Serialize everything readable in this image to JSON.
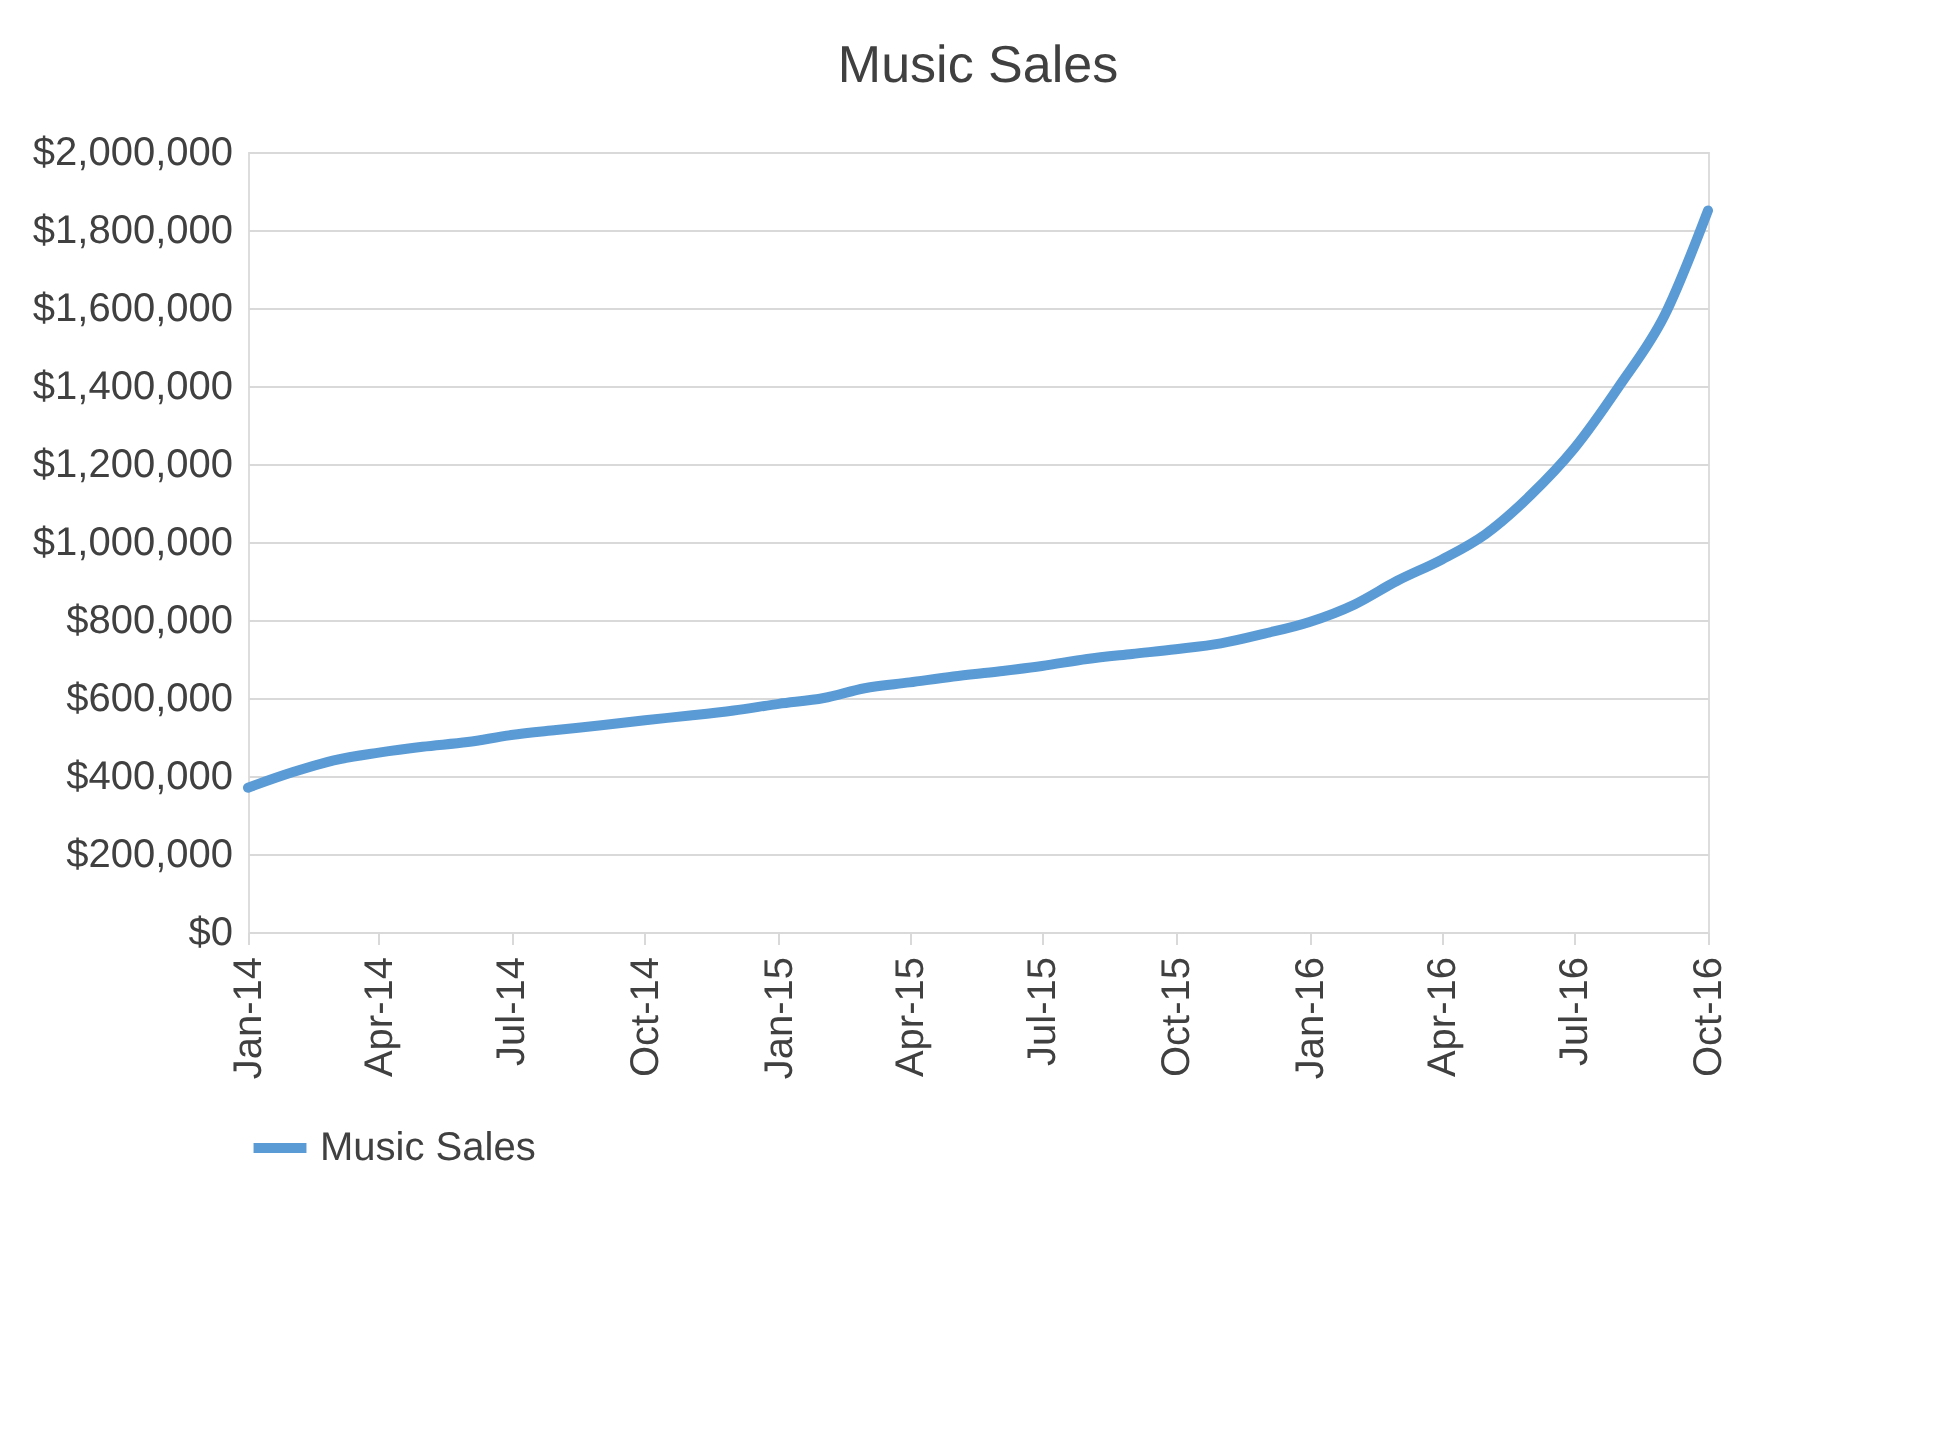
{
  "chart_data": {
    "type": "line",
    "title": "Music Sales",
    "x": [
      "2014-01",
      "2014-02",
      "2014-03",
      "2014-04",
      "2014-05",
      "2014-06",
      "2014-07",
      "2014-08",
      "2014-09",
      "2014-10",
      "2014-11",
      "2014-12",
      "2015-01",
      "2015-02",
      "2015-03",
      "2015-04",
      "2015-05",
      "2015-06",
      "2015-07",
      "2015-08",
      "2015-09",
      "2015-10",
      "2015-11",
      "2015-12",
      "2016-01",
      "2016-02",
      "2016-03",
      "2016-04",
      "2016-05",
      "2016-06",
      "2016-07",
      "2016-08",
      "2016-09",
      "2016-10"
    ],
    "series": [
      {
        "name": "Music Sales",
        "color": "#5b9bd5",
        "values": [
          370000,
          410000,
          440000,
          460000,
          475000,
          487000,
          505000,
          518000,
          530000,
          543000,
          555000,
          568000,
          585000,
          600000,
          625000,
          640000,
          655000,
          668000,
          682000,
          700000,
          713000,
          725000,
          740000,
          765000,
          795000,
          840000,
          900000,
          955000,
          1020000,
          1120000,
          1240000,
          1400000,
          1580000,
          1850000
        ]
      }
    ],
    "xlim": [
      "2014-01",
      "2016-10"
    ],
    "xticks": [
      {
        "value": "2014-01",
        "label": "Jan-14"
      },
      {
        "value": "2014-04",
        "label": "Apr-14"
      },
      {
        "value": "2014-07",
        "label": "Jul-14"
      },
      {
        "value": "2014-10",
        "label": "Oct-14"
      },
      {
        "value": "2015-01",
        "label": "Jan-15"
      },
      {
        "value": "2015-04",
        "label": "Apr-15"
      },
      {
        "value": "2015-07",
        "label": "Jul-15"
      },
      {
        "value": "2015-10",
        "label": "Oct-15"
      },
      {
        "value": "2016-01",
        "label": "Jan-16"
      },
      {
        "value": "2016-04",
        "label": "Apr-16"
      },
      {
        "value": "2016-07",
        "label": "Jul-16"
      },
      {
        "value": "2016-10",
        "label": "Oct-16"
      }
    ],
    "ylim": [
      0,
      2000000
    ],
    "yticks": [
      {
        "value": 0,
        "label": "$0"
      },
      {
        "value": 200000,
        "label": "$200,000"
      },
      {
        "value": 400000,
        "label": "$400,000"
      },
      {
        "value": 600000,
        "label": "$600,000"
      },
      {
        "value": 800000,
        "label": "$800,000"
      },
      {
        "value": 1000000,
        "label": "$1,000,000"
      },
      {
        "value": 1200000,
        "label": "$1,200,000"
      },
      {
        "value": 1400000,
        "label": "$1,400,000"
      },
      {
        "value": 1600000,
        "label": "$1,600,000"
      },
      {
        "value": 1800000,
        "label": "$1,800,000"
      },
      {
        "value": 2000000,
        "label": "$2,000,000"
      }
    ],
    "grid": "y",
    "legend": "bottom",
    "marker": "none",
    "line_style": "solid"
  }
}
